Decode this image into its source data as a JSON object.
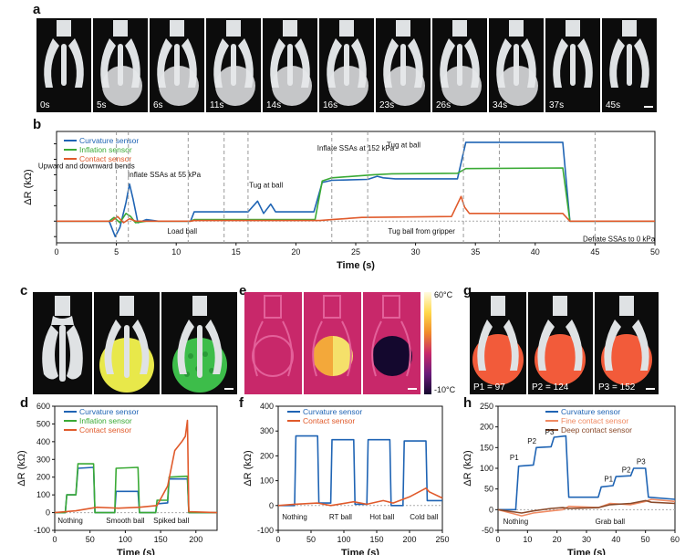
{
  "panels": {
    "a": "a",
    "b": "b",
    "c": "c",
    "d": "d",
    "e": "e",
    "f": "f",
    "g": "g",
    "h": "h"
  },
  "panel_a": {
    "frame_labels": [
      "0s",
      "5s",
      "6s",
      "11s",
      "14s",
      "16s",
      "23s",
      "26s",
      "34s",
      "37s",
      "45s"
    ]
  },
  "panel_e": {
    "colorbar_max": "60°C",
    "colorbar_min": "-10°C"
  },
  "panel_g": {
    "labels": [
      "P1 = 97",
      "P2 = 124",
      "P3 = 152"
    ]
  },
  "colors": {
    "curvature": "#1f64b4",
    "inflation": "#3aaa35",
    "contact": "#e05a2b",
    "fine": "#f08a62",
    "deep": "#8a4a2a",
    "inflation_b": "#3aaa35"
  },
  "chart_data": [
    {
      "panel": "b",
      "type": "line",
      "xlabel": "Time (s)",
      "ylabel": "ΔR (kΩ)",
      "xlim": [
        0,
        50
      ],
      "xticks": [
        "0",
        "5",
        "10",
        "15",
        "20",
        "25",
        "30",
        "35",
        "40",
        "45",
        "50"
      ],
      "series": [
        {
          "name": "Curvature sensor",
          "x": [
            0,
            4.4,
            4.9,
            5.3,
            5.8,
            6.1,
            6.4,
            6.8,
            7.5,
            8.5,
            11.2,
            11.5,
            16,
            16.8,
            17.3,
            17.9,
            18.3,
            21.5,
            22.2,
            23,
            26,
            26.8,
            27.3,
            28.3,
            33.5,
            34.2,
            42.3,
            42.9,
            50
          ],
          "y": [
            0,
            0,
            -50,
            -20,
            60,
            120,
            70,
            -5,
            5,
            0,
            0,
            30,
            30,
            65,
            25,
            55,
            30,
            30,
            125,
            132,
            135,
            145,
            140,
            137,
            137,
            255,
            255,
            0,
            0
          ]
        },
        {
          "name": "Inflation sensor",
          "x": [
            0,
            4.4,
            4.8,
            5.3,
            5.8,
            6.2,
            6.6,
            7.5,
            11.2,
            11.5,
            21.6,
            22.2,
            23,
            26.5,
            28,
            33.5,
            34.2,
            42.3,
            42.9,
            50
          ],
          "y": [
            0,
            0,
            12,
            -5,
            25,
            15,
            -5,
            0,
            0,
            5,
            5,
            130,
            140,
            150,
            153,
            155,
            170,
            172,
            0,
            0
          ]
        },
        {
          "name": "Contact sensor",
          "x": [
            0,
            4.6,
            5.1,
            5.6,
            6.1,
            6.6,
            11.2,
            11.5,
            22,
            23,
            25.5,
            33,
            33.8,
            34.1,
            34.5,
            42.3,
            42.9,
            50
          ],
          "y": [
            0,
            0,
            15,
            -5,
            8,
            0,
            0,
            2,
            2,
            5,
            12,
            15,
            80,
            45,
            25,
            25,
            0,
            0
          ]
        }
      ],
      "annotations": [
        "Upward and downward bends",
        "Inflate SSAs at 55 kPa",
        "Load ball",
        "Tug at ball",
        "Inflate SSAs at 152 kPa",
        "Tug at ball",
        "Tug ball from gripper",
        "Deflate SSAs to 0 kPa"
      ]
    },
    {
      "panel": "d",
      "type": "line",
      "xlabel": "Time (s)",
      "ylabel": "ΔR (kΩ)",
      "xlim": [
        0,
        230
      ],
      "ylim": [
        -100,
        600
      ],
      "xticks": [
        "0",
        "50",
        "100",
        "150",
        "200"
      ],
      "yticks": [
        "-100",
        "0",
        "100",
        "200",
        "300",
        "400",
        "500",
        "600"
      ],
      "series": [
        {
          "name": "Curvature sensor",
          "x": [
            0,
            15,
            17,
            30,
            33,
            55,
            57,
            85,
            87,
            118,
            120,
            143,
            145,
            160,
            162,
            188,
            190,
            230
          ],
          "y": [
            0,
            0,
            100,
            100,
            250,
            255,
            0,
            0,
            120,
            120,
            0,
            0,
            50,
            55,
            190,
            190,
            0,
            0
          ]
        },
        {
          "name": "Inflation sensor",
          "x": [
            0,
            15,
            17,
            30,
            33,
            55,
            57,
            85,
            87,
            118,
            120,
            143,
            145,
            160,
            162,
            188,
            190,
            230
          ],
          "y": [
            0,
            0,
            100,
            100,
            275,
            275,
            0,
            0,
            250,
            255,
            0,
            0,
            70,
            70,
            200,
            205,
            0,
            0
          ]
        },
        {
          "name": "Contact sensor",
          "x": [
            0,
            30,
            60,
            90,
            120,
            145,
            160,
            170,
            180,
            185,
            188,
            190,
            230
          ],
          "y": [
            0,
            10,
            30,
            25,
            30,
            40,
            150,
            350,
            400,
            430,
            520,
            5,
            0
          ]
        }
      ],
      "annotations": [
        "Nothing",
        "Smooth ball",
        "Spiked ball"
      ]
    },
    {
      "panel": "f",
      "type": "line",
      "xlabel": "Time (s)",
      "ylabel": "ΔR (kΩ)",
      "xlim": [
        0,
        250
      ],
      "ylim": [
        -100,
        400
      ],
      "xticks": [
        "0",
        "50",
        "100",
        "150",
        "200",
        "250"
      ],
      "yticks": [
        "-100",
        "0",
        "100",
        "200",
        "300",
        "400"
      ],
      "series": [
        {
          "name": "Curvature sensor",
          "x": [
            0,
            25,
            27,
            60,
            62,
            80,
            82,
            115,
            117,
            135,
            137,
            170,
            172,
            190,
            192,
            225,
            227,
            250
          ],
          "y": [
            0,
            0,
            280,
            280,
            10,
            10,
            265,
            265,
            5,
            5,
            265,
            265,
            0,
            0,
            260,
            260,
            20,
            20
          ]
        },
        {
          "name": "Contact sensor",
          "x": [
            0,
            25,
            60,
            80,
            115,
            135,
            160,
            175,
            200,
            225,
            230,
            250
          ],
          "y": [
            0,
            5,
            10,
            0,
            15,
            5,
            20,
            10,
            35,
            70,
            55,
            30
          ]
        }
      ],
      "annotations": [
        "Nothing",
        "RT ball",
        "Hot ball",
        "Cold ball"
      ]
    },
    {
      "panel": "h",
      "type": "line",
      "xlabel": "Time (s)",
      "ylabel": "ΔR (kΩ)",
      "xlim": [
        0,
        60
      ],
      "ylim": [
        -50,
        250
      ],
      "xticks": [
        "0",
        "10",
        "20",
        "30",
        "40",
        "50",
        "60"
      ],
      "yticks": [
        "-50",
        "0",
        "50",
        "100",
        "150",
        "200",
        "250"
      ],
      "series": [
        {
          "name": "Curvature sensor",
          "x": [
            0,
            6,
            7,
            12,
            13,
            18,
            19,
            23,
            24,
            34,
            35,
            39,
            40,
            45,
            46,
            50,
            51,
            60
          ],
          "y": [
            0,
            0,
            105,
            108,
            150,
            152,
            175,
            178,
            30,
            30,
            55,
            58,
            80,
            82,
            100,
            100,
            30,
            25
          ]
        },
        {
          "name": "Fine contact sensor",
          "x": [
            0,
            8,
            12,
            18,
            22,
            24,
            34,
            38,
            45,
            50,
            52,
            60
          ],
          "y": [
            0,
            -15,
            -8,
            -3,
            0,
            8,
            5,
            15,
            12,
            20,
            25,
            20
          ]
        },
        {
          "name": "Deep contact sensor",
          "x": [
            0,
            8,
            12,
            18,
            22,
            24,
            34,
            38,
            45,
            50,
            52,
            60
          ],
          "y": [
            0,
            -8,
            -3,
            3,
            5,
            3,
            5,
            12,
            15,
            22,
            18,
            15
          ]
        }
      ],
      "annotations": [
        "P1",
        "P2",
        "P3",
        "P1",
        "P2",
        "P3",
        "Nothing",
        "Grab ball"
      ]
    }
  ]
}
